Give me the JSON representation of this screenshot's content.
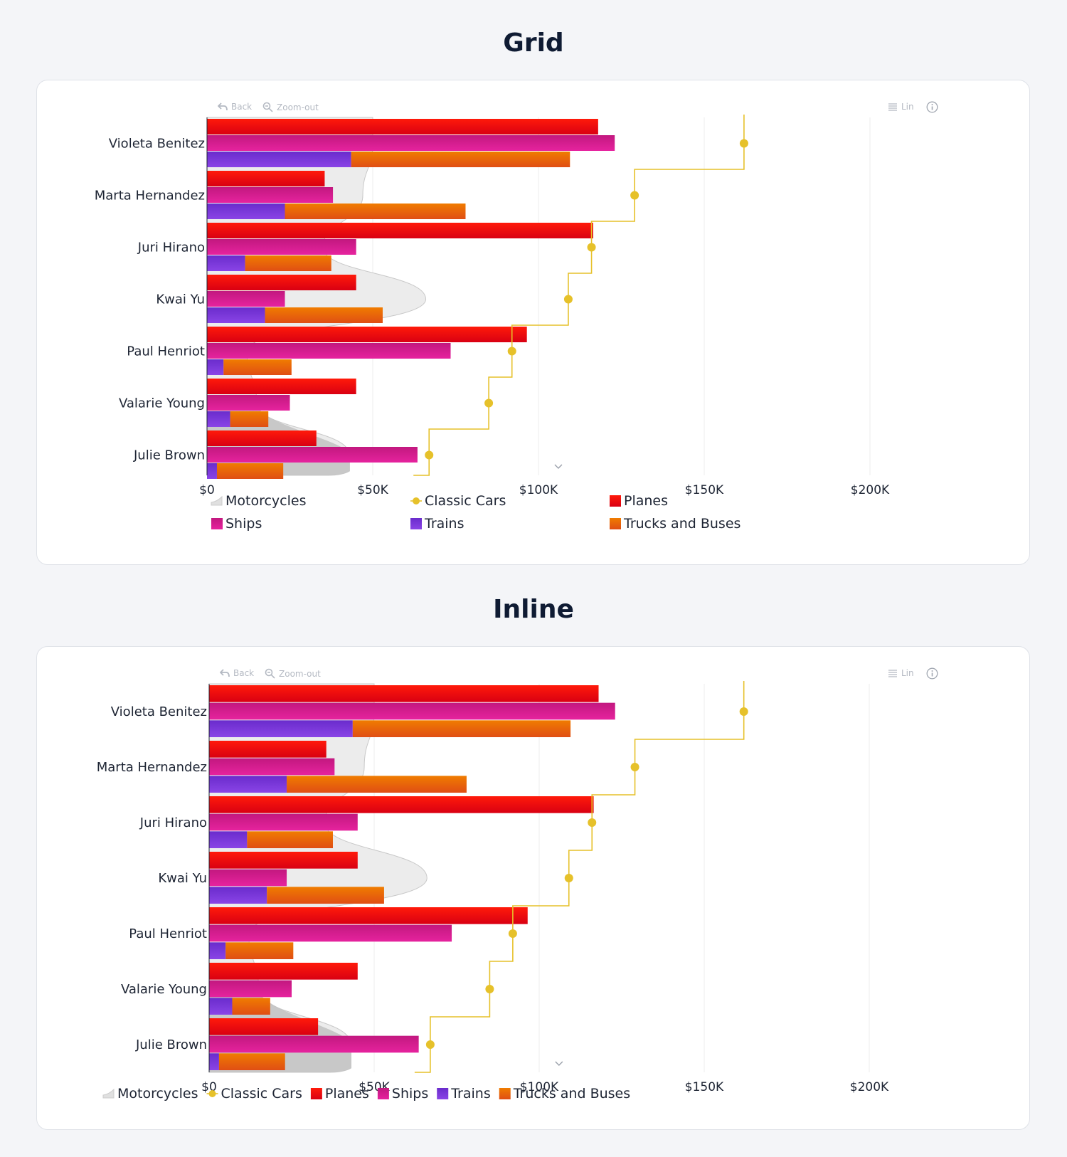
{
  "sections": [
    {
      "title": "Grid",
      "toolbar": {
        "back_label": "Back",
        "zoom_label": "Zoom-out",
        "lin_label": "Lin"
      },
      "legend_layout": "grid"
    },
    {
      "title": "Inline",
      "toolbar": {
        "back_label": "Back",
        "zoom_label": "Zoom-out",
        "lin_label": "Lin"
      },
      "legend_layout": "inline"
    }
  ],
  "chart_data": {
    "type": "bar",
    "orientation": "horizontal",
    "categories": [
      "Violeta Benitez",
      "Marta Hernandez",
      "Juri Hirano",
      "Kwai Yu",
      "Paul Henriot",
      "Valarie Young",
      "Julie Brown"
    ],
    "x_ticks": [
      "$0",
      "$50K",
      "$100K",
      "$150K",
      "$200K"
    ],
    "xlim": [
      0,
      200000
    ],
    "grid": true,
    "series": [
      {
        "name": "Motorcycles",
        "type": "area",
        "color": "#e0e0e0",
        "values": [
          50000,
          47000,
          35000,
          66000,
          12000,
          15000,
          43000
        ]
      },
      {
        "name": "Classic Cars",
        "type": "step-line",
        "color": "#e6c12a",
        "values": [
          162000,
          129000,
          116000,
          109000,
          92000,
          85000,
          67000
        ]
      },
      {
        "name": "Planes",
        "type": "bar",
        "color": "#f20a0a",
        "values": [
          118000,
          35500,
          116500,
          45000,
          96500,
          45000,
          33000
        ]
      },
      {
        "name": "Ships",
        "type": "bar",
        "color": "#d41a9c",
        "values": [
          123000,
          38000,
          45000,
          23500,
          73500,
          25000,
          63500
        ]
      },
      {
        "name": "Trains",
        "type": "stacked-bar",
        "color": "#7a35d6",
        "values": [
          43500,
          23500,
          11500,
          17500,
          5000,
          7000,
          3000
        ]
      },
      {
        "name": "Trucks and Buses",
        "type": "stacked-bar",
        "color": "#f06a0a",
        "values": [
          66000,
          54500,
          26000,
          35500,
          20500,
          11500,
          20000
        ]
      }
    ]
  }
}
